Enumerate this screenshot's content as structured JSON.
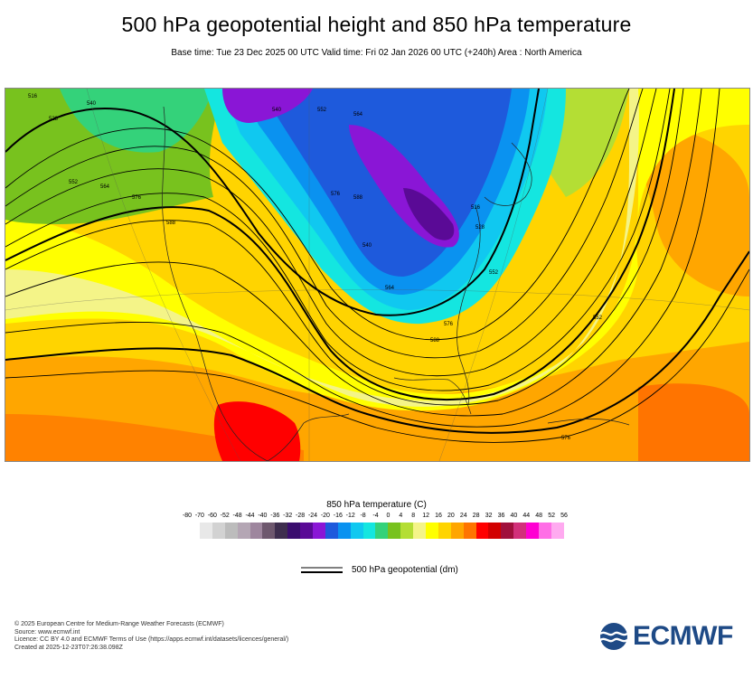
{
  "title": "500 hPa geopotential height and 850 hPa temperature",
  "subtitle": "Base time: Tue 23 Dec 2025 00 UTC Valid time: Fri 02 Jan 2026 00 UTC (+240h) Area : North America",
  "map": {
    "region": "North America",
    "contour_labels": [
      "516",
      "528",
      "540",
      "552",
      "564",
      "576",
      "588",
      "540",
      "552",
      "564",
      "576",
      "588",
      "516",
      "528",
      "540",
      "552",
      "564",
      "576",
      "588",
      "552",
      "576"
    ]
  },
  "legend": {
    "title": "850 hPa temperature (C)",
    "ticks": [
      "-80",
      "-70",
      "-60",
      "-52",
      "-48",
      "-44",
      "-40",
      "-36",
      "-32",
      "-28",
      "-24",
      "-20",
      "-16",
      "-12",
      "-8",
      "-4",
      "0",
      "4",
      "8",
      "12",
      "16",
      "20",
      "24",
      "28",
      "32",
      "36",
      "40",
      "44",
      "48",
      "52",
      "56"
    ],
    "colors": [
      "#e8e8e8",
      "#d2d2d2",
      "#bcbcbc",
      "#b4a6b4",
      "#9e869e",
      "#6e586e",
      "#3e2e4e",
      "#3a0d6e",
      "#5a0a96",
      "#8a16d6",
      "#1e5adc",
      "#0a92f0",
      "#10c8f0",
      "#14e6e0",
      "#34d27a",
      "#78c21e",
      "#b4de34",
      "#f4f488",
      "#ffff00",
      "#ffd400",
      "#ffa600",
      "#ff7400",
      "#ff0000",
      "#d20000",
      "#a0103c",
      "#d2307a",
      "#ff00d2",
      "#ff6ee6",
      "#ffaaf0",
      "#f0c8f0",
      "#e6e6e6"
    ]
  },
  "line_legend": {
    "label": "500 hPa geopotential (dm)"
  },
  "footer": {
    "copyright": "© 2025 European Centre for Medium-Range Weather Forecasts (ECMWF)",
    "source": "Source: www.ecmwf.int",
    "licence": "Licence: CC BY 4.0 and ECMWF Terms of Use (https://apps.ecmwf.int/datasets/licences/general/)",
    "created": "Created at 2025-12-23T07:26:38.098Z"
  },
  "logo": {
    "text": "ECMWF",
    "color": "#1e4a86"
  }
}
